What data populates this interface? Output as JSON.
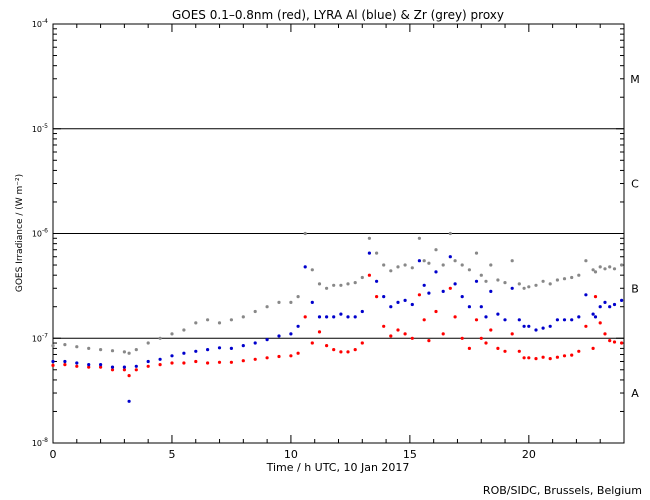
{
  "chart_data": {
    "type": "scatter",
    "title": "GOES 0.1–0.8nm (red), LYRA Al (blue) & Zr (grey) proxy",
    "xlabel": "Time / h UTC, 10 Jan 2017",
    "ylabel": "GOES Irradiance / (W m⁻²)",
    "credit": "ROB/SIDC, Brussels, Belgium",
    "x_range": [
      0,
      24
    ],
    "y_range": [
      1e-08,
      0.0001
    ],
    "y_scale": "log",
    "x_ticks": [
      0,
      5,
      10,
      15,
      20
    ],
    "x_tick_labels": [
      "0",
      "5",
      "10",
      "15",
      "20"
    ],
    "y_tick_labels": [
      {
        "value": 1e-08,
        "base": "10",
        "exp": "-8"
      },
      {
        "value": 1e-07,
        "base": "10",
        "exp": "-7"
      },
      {
        "value": 1e-06,
        "base": "10",
        "exp": "-6"
      },
      {
        "value": 1e-05,
        "base": "10",
        "exp": "-5"
      },
      {
        "value": 0.0001,
        "base": "10",
        "exp": "-4"
      }
    ],
    "flare_classes": [
      {
        "label": "A",
        "value": 3e-08
      },
      {
        "label": "B",
        "value": 3e-07
      },
      {
        "label": "C",
        "value": 3e-06
      },
      {
        "label": "M",
        "value": 3e-05
      }
    ],
    "threshold_lines": [
      1e-07,
      1e-06,
      1e-05
    ],
    "series": [
      {
        "color": "#ff0000",
        "x": [
          0,
          0.5,
          1,
          1.5,
          2,
          2.5,
          3,
          3.2,
          3.5,
          4,
          4.5,
          5,
          5.5,
          6,
          6.5,
          7,
          7.5,
          8,
          8.5,
          9,
          9.5,
          10,
          10.3,
          10.6,
          10.9,
          11.2,
          11.5,
          11.8,
          12.1,
          12.4,
          12.7,
          13.0,
          13.3,
          13.6,
          13.9,
          14.2,
          14.5,
          14.8,
          15.1,
          15.4,
          15.6,
          15.8,
          16.1,
          16.4,
          16.7,
          16.9,
          17.2,
          17.5,
          17.8,
          18.0,
          18.2,
          18.4,
          18.7,
          19.0,
          19.3,
          19.6,
          19.8,
          20.0,
          20.3,
          20.6,
          20.9,
          21.2,
          21.5,
          21.8,
          22.1,
          22.4,
          22.7,
          22.8,
          23.0,
          23.2,
          23.4,
          23.6,
          23.9
        ],
        "y": [
          5.5e-08,
          5.6e-08,
          5.4e-08,
          5.3e-08,
          5.3e-08,
          5e-08,
          5e-08,
          4.4e-08,
          5e-08,
          5.4e-08,
          5.6e-08,
          5.8e-08,
          5.8e-08,
          6e-08,
          5.8e-08,
          5.9e-08,
          5.9e-08,
          6.1e-08,
          6.3e-08,
          6.5e-08,
          6.7e-08,
          6.8e-08,
          7.2e-08,
          1.6e-07,
          9e-08,
          1.15e-07,
          8.5e-08,
          7.8e-08,
          7.4e-08,
          7.4e-08,
          7.8e-08,
          9e-08,
          4e-07,
          2.5e-07,
          1.3e-07,
          1.05e-07,
          1.2e-07,
          1.1e-07,
          1e-07,
          2.6e-07,
          1.5e-07,
          9.5e-08,
          1.8e-07,
          1.1e-07,
          3e-07,
          1.6e-07,
          1e-07,
          8e-08,
          1.5e-07,
          1e-07,
          9e-08,
          1.2e-07,
          8e-08,
          7.5e-08,
          1.1e-07,
          7.5e-08,
          6.5e-08,
          6.5e-08,
          6.4e-08,
          6.6e-08,
          6.4e-08,
          6.6e-08,
          6.8e-08,
          6.9e-08,
          7.5e-08,
          1.3e-07,
          8e-08,
          2.5e-07,
          1.4e-07,
          1.1e-07,
          9.5e-08,
          9.2e-08,
          9e-08
        ]
      },
      {
        "color": "#0000cc",
        "x": [
          0,
          0.5,
          1,
          1.5,
          2,
          2.5,
          3,
          3.2,
          3.5,
          4,
          4.5,
          5,
          5.5,
          6,
          6.5,
          7,
          7.5,
          8,
          8.5,
          9,
          9.5,
          10,
          10.3,
          10.6,
          10.9,
          11.2,
          11.5,
          11.8,
          12.1,
          12.4,
          12.7,
          13.0,
          13.3,
          13.6,
          13.9,
          14.2,
          14.5,
          14.8,
          15.1,
          15.4,
          15.6,
          15.8,
          16.1,
          16.4,
          16.7,
          16.9,
          17.2,
          17.5,
          17.8,
          18.0,
          18.2,
          18.4,
          18.7,
          19.0,
          19.3,
          19.6,
          19.8,
          20.0,
          20.3,
          20.6,
          20.9,
          21.2,
          21.5,
          21.8,
          22.1,
          22.4,
          22.7,
          22.8,
          23.0,
          23.2,
          23.4,
          23.6,
          23.9
        ],
        "y": [
          6e-08,
          6e-08,
          5.8e-08,
          5.6e-08,
          5.6e-08,
          5.3e-08,
          5.3e-08,
          2.5e-08,
          5.4e-08,
          6e-08,
          6.3e-08,
          6.8e-08,
          7.2e-08,
          7.5e-08,
          7.8e-08,
          8.1e-08,
          8e-08,
          8.5e-08,
          9e-08,
          9.7e-08,
          1.05e-07,
          1.1e-07,
          1.3e-07,
          4.8e-07,
          2.2e-07,
          1.6e-07,
          1.6e-07,
          1.6e-07,
          1.7e-07,
          1.6e-07,
          1.6e-07,
          1.8e-07,
          6.5e-07,
          3.5e-07,
          2.5e-07,
          2e-07,
          2.2e-07,
          2.3e-07,
          2.1e-07,
          5.5e-07,
          3.2e-07,
          2.7e-07,
          4.3e-07,
          2.8e-07,
          6e-07,
          3.3e-07,
          2.5e-07,
          2e-07,
          3.5e-07,
          2e-07,
          1.6e-07,
          2.8e-07,
          1.7e-07,
          1.5e-07,
          3e-07,
          1.5e-07,
          1.3e-07,
          1.3e-07,
          1.2e-07,
          1.25e-07,
          1.3e-07,
          1.5e-07,
          1.5e-07,
          1.5e-07,
          1.6e-07,
          2.6e-07,
          1.7e-07,
          1.6e-07,
          2e-07,
          2.2e-07,
          2e-07,
          2.1e-07,
          2.3e-07
        ]
      },
      {
        "color": "#888888",
        "x": [
          0,
          0.5,
          1,
          1.5,
          2,
          2.5,
          3,
          3.2,
          3.5,
          4,
          4.5,
          5,
          5.5,
          6,
          6.5,
          7,
          7.5,
          8,
          8.5,
          9,
          9.5,
          10,
          10.3,
          10.6,
          10.9,
          11.2,
          11.5,
          11.8,
          12.1,
          12.4,
          12.7,
          13.0,
          13.3,
          13.6,
          13.9,
          14.2,
          14.5,
          14.8,
          15.1,
          15.4,
          15.6,
          15.8,
          16.1,
          16.4,
          16.7,
          16.9,
          17.2,
          17.5,
          17.8,
          18.0,
          18.2,
          18.4,
          18.7,
          19.0,
          19.3,
          19.6,
          19.8,
          20.0,
          20.3,
          20.6,
          20.9,
          21.2,
          21.5,
          21.8,
          22.1,
          22.4,
          22.7,
          22.8,
          23.0,
          23.2,
          23.4,
          23.6,
          23.9
        ],
        "y": [
          8.5e-08,
          8.7e-08,
          8.3e-08,
          8e-08,
          7.8e-08,
          7.6e-08,
          7.4e-08,
          7.2e-08,
          7.8e-08,
          9e-08,
          1e-07,
          1.1e-07,
          1.2e-07,
          1.4e-07,
          1.5e-07,
          1.4e-07,
          1.5e-07,
          1.6e-07,
          1.8e-07,
          2e-07,
          2.2e-07,
          2.2e-07,
          2.5e-07,
          1e-06,
          4.5e-07,
          3.3e-07,
          3e-07,
          3.2e-07,
          3.2e-07,
          3.3e-07,
          3.4e-07,
          3.8e-07,
          9e-07,
          6.5e-07,
          5e-07,
          4.4e-07,
          4.8e-07,
          5e-07,
          4.7e-07,
          9e-07,
          5.5e-07,
          5.2e-07,
          7e-07,
          5e-07,
          1e-06,
          5.5e-07,
          5e-07,
          4.5e-07,
          6.5e-07,
          4e-07,
          3.5e-07,
          5e-07,
          3.6e-07,
          3.4e-07,
          5.5e-07,
          3.3e-07,
          3e-07,
          3.1e-07,
          3.2e-07,
          3.5e-07,
          3.3e-07,
          3.6e-07,
          3.7e-07,
          3.8e-07,
          4e-07,
          5.5e-07,
          4.5e-07,
          4.3e-07,
          4.8e-07,
          4.6e-07,
          4.8e-07,
          4.6e-07,
          5e-07
        ]
      }
    ]
  }
}
